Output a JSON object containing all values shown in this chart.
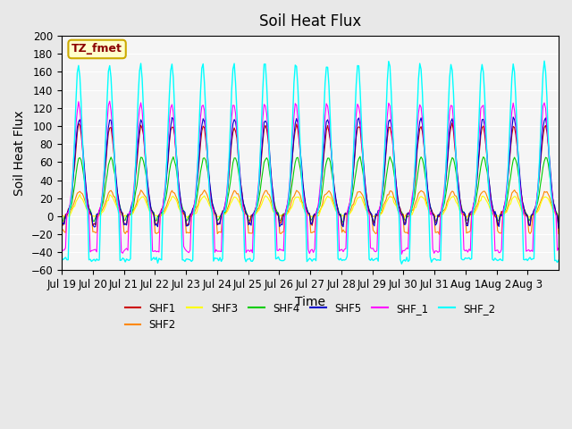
{
  "title": "Soil Heat Flux",
  "xlabel": "Time",
  "ylabel": "Soil Heat Flux",
  "ylim": [
    -60,
    200
  ],
  "yticks": [
    -60,
    -40,
    -20,
    0,
    20,
    40,
    60,
    80,
    100,
    120,
    140,
    160,
    180,
    200
  ],
  "x_labels": [
    "Jul 19",
    "Jul 20",
    "Jul 21",
    "Jul 22",
    "Jul 23",
    "Jul 24",
    "Jul 25",
    "Jul 26",
    "Jul 27",
    "Jul 28",
    "Jul 29",
    "Jul 30",
    "Jul 31",
    "Aug 1",
    "Aug 2",
    "Aug 3"
  ],
  "annotation_text": "TZ_fmet",
  "annotation_color": "#8B0000",
  "annotation_bg": "#FFFFCC",
  "annotation_border": "#CCAA00",
  "series_colors": {
    "SHF1": "#CC0000",
    "SHF2": "#FF8800",
    "SHF3": "#FFFF00",
    "SHF4": "#00CC00",
    "SHF5": "#0000CC",
    "SHF_1": "#FF00FF",
    "SHF_2": "#00FFFF"
  },
  "background_color": "#E8E8E8",
  "plot_bg": "#F5F5F5",
  "grid_color": "#FFFFFF",
  "title_fontsize": 12,
  "label_fontsize": 10,
  "tick_fontsize": 8.5
}
